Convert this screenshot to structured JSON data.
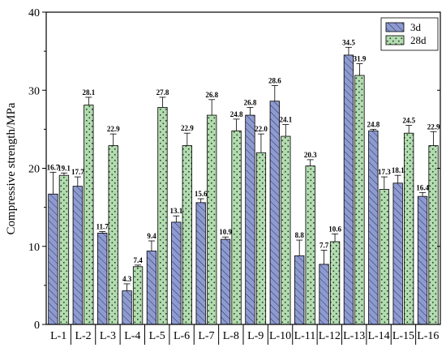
{
  "chart_data": {
    "type": "bar",
    "ylabel": "Compressive strength/MPa",
    "xlabel": "",
    "ylim": [
      0,
      40
    ],
    "yticks": [
      0,
      10,
      20,
      30,
      40
    ],
    "categories": [
      "L-1",
      "L-2",
      "L-3",
      "L-4",
      "L-5",
      "L-6",
      "L-7",
      "L-8",
      "L-9",
      "L-10",
      "L-11",
      "L-12",
      "L-13",
      "L-14",
      "L-15",
      "L-16"
    ],
    "series": [
      {
        "name": "3d",
        "color": "#8e9bd1",
        "pattern": "diagonal-hatch",
        "values": [
          16.7,
          17.7,
          11.7,
          4.3,
          9.4,
          13.1,
          15.6,
          10.9,
          26.8,
          28.6,
          8.8,
          7.7,
          34.5,
          24.8,
          18.1,
          16.4
        ],
        "labels": [
          "16.7",
          "17.7",
          "11.7",
          "4.3",
          "9.4",
          "13.1",
          "15.6",
          "10.9",
          "26.8",
          "28.6",
          "8.8",
          "7.7",
          "34.5",
          "24.8",
          "18.1",
          "16.4"
        ],
        "errors": [
          2.8,
          1.2,
          0.2,
          0.9,
          1.3,
          0.8,
          0.5,
          0.3,
          1.0,
          2.0,
          2.0,
          1.8,
          1.0,
          0.2,
          1.0,
          0.5
        ]
      },
      {
        "name": "28d",
        "color": "#b3dbb0",
        "pattern": "dots",
        "values": [
          19.1,
          28.1,
          22.9,
          7.4,
          27.8,
          22.9,
          26.8,
          24.8,
          22.0,
          24.1,
          20.3,
          10.6,
          31.9,
          17.3,
          24.5,
          22.9
        ],
        "labels": [
          "19.1",
          "28.1",
          "22.9",
          "7.4",
          "27.8",
          "22.9",
          "26.8",
          "24.8",
          "22.0",
          "24.1",
          "20.3",
          "10.6",
          "31.9",
          "17.3",
          "24.5",
          "22.9"
        ],
        "errors": [
          0.3,
          1.0,
          1.5,
          0.2,
          1.3,
          1.6,
          2.0,
          1.5,
          2.4,
          1.5,
          0.8,
          1.0,
          1.5,
          1.6,
          1.0,
          1.8
        ]
      }
    ],
    "legend": {
      "position": "top-right"
    },
    "grid": false
  }
}
